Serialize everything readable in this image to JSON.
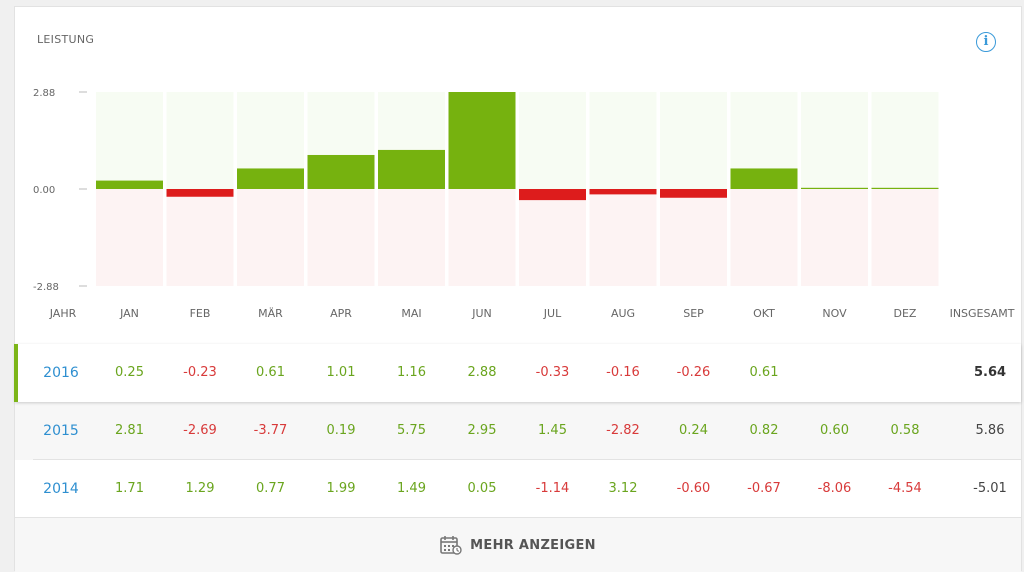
{
  "widget": {
    "title": "LEISTUNG",
    "more_label": "MEHR ANZEIGEN"
  },
  "colors": {
    "positive": "#76b20f",
    "negative": "#dd1c1c",
    "pos_bg": "#f7fcf3",
    "neg_bg": "#fdf3f3",
    "year": "#2e8fd0"
  },
  "chart_data": {
    "type": "bar",
    "title": "LEISTUNG",
    "categories": [
      "JAN",
      "FEB",
      "MÄR",
      "APR",
      "MAI",
      "JUN",
      "JUL",
      "AUG",
      "SEP",
      "OKT",
      "NOV",
      "DEZ"
    ],
    "series": [
      {
        "name": "2016",
        "values": [
          0.25,
          -0.23,
          0.61,
          1.01,
          1.16,
          2.88,
          -0.33,
          -0.16,
          -0.26,
          0.61,
          0.03,
          0.02
        ]
      }
    ],
    "ylim": [
      -2.88,
      2.88
    ],
    "yticks": [
      "2.88",
      "0.00",
      "-2.88"
    ],
    "grid": false
  },
  "table": {
    "header_year": "JAHR",
    "header_total": "INSGESAMT",
    "months": [
      "JAN",
      "FEB",
      "MÄR",
      "APR",
      "MAI",
      "JUN",
      "JUL",
      "AUG",
      "SEP",
      "OKT",
      "NOV",
      "DEZ"
    ],
    "rows": [
      {
        "year": "2016",
        "values": [
          "0.25",
          "-0.23",
          "0.61",
          "1.01",
          "1.16",
          "2.88",
          "-0.33",
          "-0.16",
          "-0.26",
          "0.61",
          "",
          ""
        ],
        "total": "5.64"
      },
      {
        "year": "2015",
        "values": [
          "2.81",
          "-2.69",
          "-3.77",
          "0.19",
          "5.75",
          "2.95",
          "1.45",
          "-2.82",
          "0.24",
          "0.82",
          "0.60",
          "0.58"
        ],
        "total": "5.86"
      },
      {
        "year": "2014",
        "values": [
          "1.71",
          "1.29",
          "0.77",
          "1.99",
          "1.49",
          "0.05",
          "-1.14",
          "3.12",
          "-0.60",
          "-0.67",
          "-8.06",
          "-4.54"
        ],
        "total": "-5.01"
      }
    ]
  }
}
